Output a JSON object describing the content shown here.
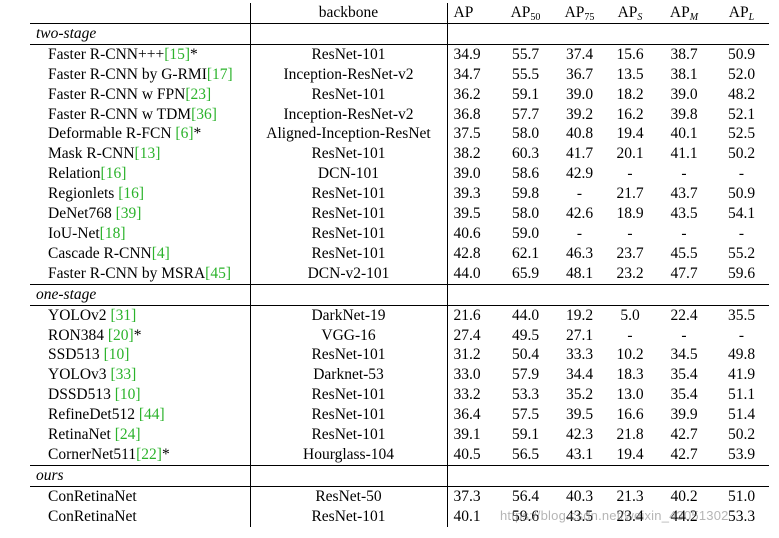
{
  "header": {
    "method": "",
    "backbone": "backbone",
    "ap": "AP",
    "ap50_base": "AP",
    "ap50_sub": "50",
    "ap75_base": "AP",
    "ap75_sub": "75",
    "aps_base": "AP",
    "aps_sub": "S",
    "apm_base": "AP",
    "apm_sub": "M",
    "apl_base": "AP",
    "apl_sub": "L"
  },
  "groups": [
    {
      "label": "two-stage",
      "rows": [
        {
          "name": "Faster R-CNN+++",
          "ref": "[15]",
          "suffix": "*",
          "backbone": "ResNet-101",
          "ap": "34.9",
          "ap50": "55.7",
          "ap75": "37.4",
          "aps": "15.6",
          "apm": "38.7",
          "apl": "50.9"
        },
        {
          "name": "Faster R-CNN by G-RMI",
          "ref": "[17]",
          "suffix": "",
          "backbone": "Inception-ResNet-v2",
          "ap": "34.7",
          "ap50": "55.5",
          "ap75": "36.7",
          "aps": "13.5",
          "apm": "38.1",
          "apl": "52.0"
        },
        {
          "name": "Faster R-CNN w FPN",
          "ref": "[23]",
          "suffix": "",
          "backbone": "ResNet-101",
          "ap": "36.2",
          "ap50": "59.1",
          "ap75": "39.0",
          "aps": "18.2",
          "apm": "39.0",
          "apl": "48.2"
        },
        {
          "name": "Faster R-CNN w TDM",
          "ref": "[36]",
          "suffix": "",
          "backbone": "Inception-ResNet-v2",
          "ap": "36.8",
          "ap50": "57.7",
          "ap75": "39.2",
          "aps": "16.2",
          "apm": "39.8",
          "apl": "52.1"
        },
        {
          "name": "Deformable R-FCN ",
          "ref": "[6]",
          "suffix": "*",
          "backbone": "Aligned-Inception-ResNet",
          "ap": "37.5",
          "ap50": "58.0",
          "ap75": "40.8",
          "aps": "19.4",
          "apm": "40.1",
          "apl": "52.5"
        },
        {
          "name": "Mask R-CNN",
          "ref": "[13]",
          "suffix": "",
          "backbone": "ResNet-101",
          "ap": "38.2",
          "ap50": "60.3",
          "ap75": "41.7",
          "aps": "20.1",
          "apm": "41.1",
          "apl": "50.2"
        },
        {
          "name": "Relation",
          "ref": "[16]",
          "suffix": "",
          "backbone": "DCN-101",
          "ap": "39.0",
          "ap50": "58.6",
          "ap75": "42.9",
          "aps": "-",
          "apm": "-",
          "apl": "-"
        },
        {
          "name": "Regionlets ",
          "ref": "[16]",
          "suffix": "",
          "backbone": "ResNet-101",
          "ap": "39.3",
          "ap50": "59.8",
          "ap75": "-",
          "aps": "21.7",
          "apm": "43.7",
          "apl": "50.9"
        },
        {
          "name": "DeNet768 ",
          "ref": "[39]",
          "suffix": "",
          "backbone": "ResNet-101",
          "ap": "39.5",
          "ap50": "58.0",
          "ap75": "42.6",
          "aps": "18.9",
          "apm": "43.5",
          "apl": "54.1"
        },
        {
          "name": "IoU-Net",
          "ref": "[18]",
          "suffix": "",
          "backbone": "ResNet-101",
          "ap": "40.6",
          "ap50": "59.0",
          "ap75": "-",
          "aps": "-",
          "apm": "-",
          "apl": "-"
        },
        {
          "name": "Cascade R-CNN",
          "ref": "[4]",
          "suffix": "",
          "backbone": "ResNet-101",
          "ap": "42.8",
          "ap50": "62.1",
          "ap75": "46.3",
          "aps": "23.7",
          "apm": "45.5",
          "apl": "55.2"
        },
        {
          "name": "Faster R-CNN by MSRA",
          "ref": "[45]",
          "suffix": "",
          "backbone": "DCN-v2-101",
          "ap": "44.0",
          "ap50": "65.9",
          "ap75": "48.1",
          "aps": "23.2",
          "apm": "47.7",
          "apl": "59.6"
        }
      ]
    },
    {
      "label": "one-stage",
      "rows": [
        {
          "name": "YOLOv2 ",
          "ref": "[31]",
          "suffix": "",
          "backbone": "DarkNet-19",
          "ap": "21.6",
          "ap50": "44.0",
          "ap75": "19.2",
          "aps": "5.0",
          "apm": "22.4",
          "apl": "35.5"
        },
        {
          "name": "RON384 ",
          "ref": "[20]",
          "suffix": "*",
          "backbone": "VGG-16",
          "ap": "27.4",
          "ap50": "49.5",
          "ap75": "27.1",
          "aps": "-",
          "apm": "-",
          "apl": "-"
        },
        {
          "name": "SSD513 ",
          "ref": "[10]",
          "suffix": "",
          "backbone": "ResNet-101",
          "ap": "31.2",
          "ap50": "50.4",
          "ap75": "33.3",
          "aps": "10.2",
          "apm": "34.5",
          "apl": "49.8"
        },
        {
          "name": "YOLOv3 ",
          "ref": "[33]",
          "suffix": "",
          "backbone": "Darknet-53",
          "ap": "33.0",
          "ap50": "57.9",
          "ap75": "34.4",
          "aps": "18.3",
          "apm": "35.4",
          "apl": "41.9"
        },
        {
          "name": "DSSD513 ",
          "ref": "[10]",
          "suffix": "",
          "backbone": "ResNet-101",
          "ap": "33.2",
          "ap50": "53.3",
          "ap75": "35.2",
          "aps": "13.0",
          "apm": "35.4",
          "apl": "51.1"
        },
        {
          "name": "RefineDet512 ",
          "ref": "[44]",
          "suffix": "",
          "backbone": "ResNet-101",
          "ap": "36.4",
          "ap50": "57.5",
          "ap75": "39.5",
          "aps": "16.6",
          "apm": "39.9",
          "apl": "51.4"
        },
        {
          "name": "RetinaNet ",
          "ref": "[24]",
          "suffix": "",
          "backbone": "ResNet-101",
          "ap": "39.1",
          "ap50": "59.1",
          "ap75": "42.3",
          "aps": "21.8",
          "apm": "42.7",
          "apl": "50.2"
        },
        {
          "name": "CornerNet511",
          "ref": "[22]",
          "suffix": "*",
          "backbone": "Hourglass-104",
          "ap": "40.5",
          "ap50": "56.5",
          "ap75": "43.1",
          "aps": "19.4",
          "apm": "42.7",
          "apl": "53.9"
        }
      ]
    },
    {
      "label": "ours",
      "rows": [
        {
          "name": "ConRetinaNet",
          "ref": "",
          "suffix": "",
          "backbone": "ResNet-50",
          "ap": "37.3",
          "ap50": "56.4",
          "ap75": "40.3",
          "aps": "21.3",
          "apm": "40.2",
          "apl": "51.0"
        },
        {
          "name": "ConRetinaNet",
          "ref": "",
          "suffix": "",
          "backbone": "ResNet-101",
          "ap": "40.1",
          "ap50": "59.6",
          "ap75": "43.5",
          "aps": "23.4",
          "apm": "44.2",
          "apl": "53.3"
        }
      ]
    }
  ],
  "watermark": "https://blog.csdn.net/weixin_43051302",
  "colors": {
    "reference": "#2bb32b",
    "text": "#000000"
  }
}
